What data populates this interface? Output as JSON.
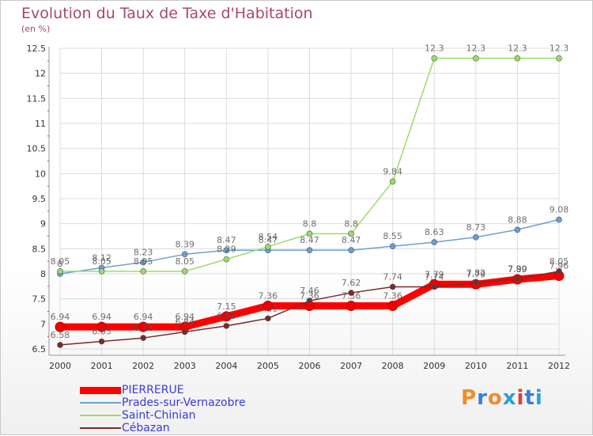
{
  "chart_data": {
    "type": "line",
    "title": "Evolution du Taux de Taxe d'Habitation",
    "subtitle": "(en %)",
    "x": [
      "2000",
      "2001",
      "2002",
      "2003",
      "2004",
      "2005",
      "2006",
      "2007",
      "2008",
      "2009",
      "2010",
      "2011",
      "2012"
    ],
    "y_ticks": [
      "6.5",
      "7",
      "7.5",
      "8",
      "8.5",
      "9",
      "9.5",
      "10",
      "10.5",
      "11",
      "11.5",
      "12",
      "12.5"
    ],
    "ylim": [
      6.5,
      12.5
    ],
    "grid": true,
    "legend_position": "bottom-left",
    "series": [
      {
        "name": "PIERRERUE",
        "color": "#ff0000",
        "values": [
          6.94,
          6.94,
          6.94,
          6.94,
          7.15,
          7.36,
          7.36,
          7.36,
          7.36,
          7.79,
          7.79,
          7.89,
          7.96
        ],
        "labels": [
          "6.94",
          "6.94",
          "6.94",
          "6.94",
          "7.15",
          "7.36",
          "7.36",
          "7.36",
          "7.36",
          "7.79",
          "7.79",
          "7.89",
          "7.96"
        ]
      },
      {
        "name": "Prades-sur-Vernazobre",
        "color": "#6a9fd4",
        "values": [
          8,
          8.12,
          8.23,
          8.39,
          8.47,
          8.47,
          8.47,
          8.47,
          8.55,
          8.63,
          8.73,
          8.88,
          9.08
        ],
        "labels": [
          "8",
          "8.12",
          "8.23",
          "8.39",
          "8.47",
          "8.47",
          "8.47",
          "8.47",
          "8.55",
          "8.63",
          "8.73",
          "8.88",
          "9.08"
        ]
      },
      {
        "name": "Saint-Chinian",
        "color": "#99dd66",
        "values": [
          8.05,
          8.05,
          8.05,
          8.05,
          8.29,
          8.54,
          8.8,
          8.8,
          9.84,
          12.3,
          12.3,
          12.3,
          12.3
        ],
        "labels": [
          "8.05",
          "8.05",
          "8.05",
          "8.05",
          "8.29",
          "8.54",
          "8.8",
          "8.8",
          "9.84",
          "12.3",
          "12.3",
          "12.3",
          "12.3"
        ]
      },
      {
        "name": "Cébazan",
        "color": "#7a2a2a",
        "values": [
          6.58,
          6.65,
          6.72,
          6.84,
          6.96,
          7.11,
          7.46,
          7.62,
          7.74,
          7.74,
          7.82,
          7.9,
          8.05
        ],
        "labels": [
          "6.58",
          "6.65",
          "6.72",
          "6.84",
          "6.96",
          "7.11",
          "7.46",
          "7.62",
          "7.74",
          "7.74",
          "7.82",
          "7.90",
          "8.05"
        ]
      }
    ]
  },
  "logo": {
    "text": "Proxiti",
    "colors": [
      "#f28c28",
      "#3a7fd6",
      "#f28c28",
      "#2aa0d8",
      "#e23b3b",
      "#3a7fd6",
      "#2aa0d8"
    ]
  }
}
